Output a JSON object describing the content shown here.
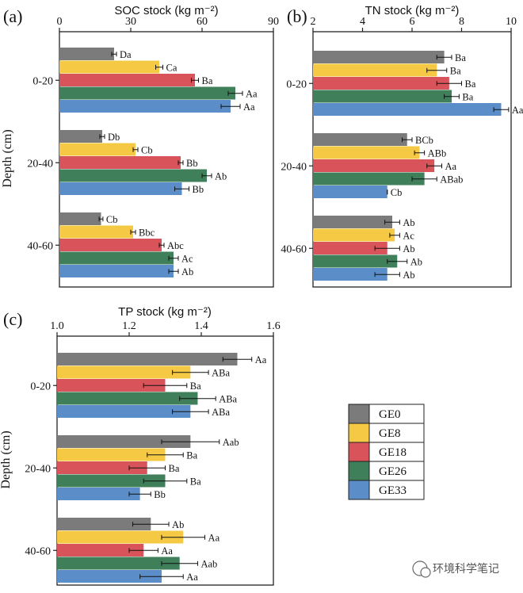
{
  "colors": {
    "GE0": "#7b7b7b",
    "GE8": "#f6c944",
    "GE18": "#d9545a",
    "GE26": "#3f7f5a",
    "GE33": "#5b8dc8"
  },
  "depth_axis_label": "Depth (cm)",
  "depth_categories": [
    "0-20",
    "20-40",
    "40-60"
  ],
  "legend": [
    "GE0",
    "GE8",
    "GE18",
    "GE26",
    "GE33"
  ],
  "watermark": "环境科学笔记",
  "chart_data": [
    {
      "type": "bar",
      "orientation": "horizontal",
      "panel": "(a)",
      "title": "SOC stock (kg m⁻²)",
      "xlim": [
        0,
        90
      ],
      "ticks": [
        "0",
        "30",
        "60",
        "90"
      ],
      "tick_values": [
        0,
        30,
        60,
        90
      ],
      "categories": [
        "0-20",
        "20-40",
        "40-60"
      ],
      "series": [
        {
          "name": "GE0",
          "values": [
            23,
            18,
            17.5
          ],
          "errors": [
            1,
            1,
            0.8
          ],
          "labels": [
            "Da",
            "Db",
            "Cb"
          ]
        },
        {
          "name": "GE8",
          "values": [
            42,
            32,
            31
          ],
          "errors": [
            1.5,
            1,
            1
          ],
          "labels": [
            "Ca",
            "Cb",
            "Bbc"
          ]
        },
        {
          "name": "GE18",
          "values": [
            57,
            51,
            43
          ],
          "errors": [
            1.5,
            1,
            1
          ],
          "labels": [
            "Ba",
            "Bb",
            "Abc"
          ]
        },
        {
          "name": "GE26",
          "values": [
            74,
            62,
            48
          ],
          "errors": [
            3,
            2,
            2
          ],
          "labels": [
            "Aa",
            "Ab",
            "Ac"
          ]
        },
        {
          "name": "GE33",
          "values": [
            72,
            51.5,
            48
          ],
          "errors": [
            4,
            3,
            2
          ],
          "labels": [
            "Aa",
            "Bb",
            "Ab"
          ]
        }
      ]
    },
    {
      "type": "bar",
      "orientation": "horizontal",
      "panel": "(b)",
      "title": "TN stock (kg m⁻²)",
      "xlim": [
        2,
        10
      ],
      "ticks": [
        "2",
        "4",
        "6",
        "8",
        "10"
      ],
      "tick_values": [
        2,
        4,
        6,
        8,
        10
      ],
      "categories": [
        "0-20",
        "20-40",
        "40-60"
      ],
      "series": [
        {
          "name": "GE0",
          "values": [
            7.3,
            5.8,
            5.2
          ],
          "errors": [
            0.3,
            0.2,
            0.3
          ],
          "labels": [
            "Ba",
            "BCb",
            "Ab"
          ]
        },
        {
          "name": "GE8",
          "values": [
            7.0,
            6.3,
            5.3
          ],
          "errors": [
            0.4,
            0.2,
            0.2
          ],
          "labels": [
            "Ba",
            "ABb",
            "Ac"
          ]
        },
        {
          "name": "GE18",
          "values": [
            7.5,
            6.9,
            5.0
          ],
          "errors": [
            0.5,
            0.3,
            0.5
          ],
          "labels": [
            "Ba",
            "Aa",
            "Ab"
          ]
        },
        {
          "name": "GE26",
          "values": [
            7.6,
            6.5,
            5.4
          ],
          "errors": [
            0.3,
            0.5,
            0.4
          ],
          "labels": [
            "Ba",
            "ABab",
            "Ab"
          ]
        },
        {
          "name": "GE33",
          "values": [
            9.6,
            5.0,
            5.0
          ],
          "errors": [
            0.3,
            0.0,
            0.5
          ],
          "labels": [
            "Aa",
            "Cb",
            "Ab"
          ]
        }
      ]
    },
    {
      "type": "bar",
      "orientation": "horizontal",
      "panel": "(c)",
      "title": "TP stock (kg m⁻²)",
      "xlim": [
        1.0,
        1.6
      ],
      "ticks": [
        "1.0",
        "1.2",
        "1.4",
        "1.6"
      ],
      "tick_values": [
        1.0,
        1.2,
        1.4,
        1.6
      ],
      "categories": [
        "0-20",
        "20-40",
        "40-60"
      ],
      "series": [
        {
          "name": "GE0",
          "values": [
            1.5,
            1.37,
            1.26
          ],
          "errors": [
            0.04,
            0.08,
            0.05
          ],
          "labels": [
            "Aa",
            "Aab",
            "Ab"
          ]
        },
        {
          "name": "GE8",
          "values": [
            1.37,
            1.3,
            1.35
          ],
          "errors": [
            0.05,
            0.05,
            0.06
          ],
          "labels": [
            "ABa",
            "Ba",
            "Aa"
          ]
        },
        {
          "name": "GE18",
          "values": [
            1.3,
            1.25,
            1.24
          ],
          "errors": [
            0.06,
            0.05,
            0.04
          ],
          "labels": [
            "Ba",
            "Ba",
            "Aa"
          ]
        },
        {
          "name": "GE26",
          "values": [
            1.39,
            1.3,
            1.34
          ],
          "errors": [
            0.05,
            0.06,
            0.05
          ],
          "labels": [
            "ABa",
            "Ba",
            "Aab"
          ]
        },
        {
          "name": "GE33",
          "values": [
            1.37,
            1.23,
            1.29
          ],
          "errors": [
            0.05,
            0.03,
            0.06
          ],
          "labels": [
            "ABa",
            "Bb",
            "Aa"
          ]
        }
      ]
    }
  ]
}
